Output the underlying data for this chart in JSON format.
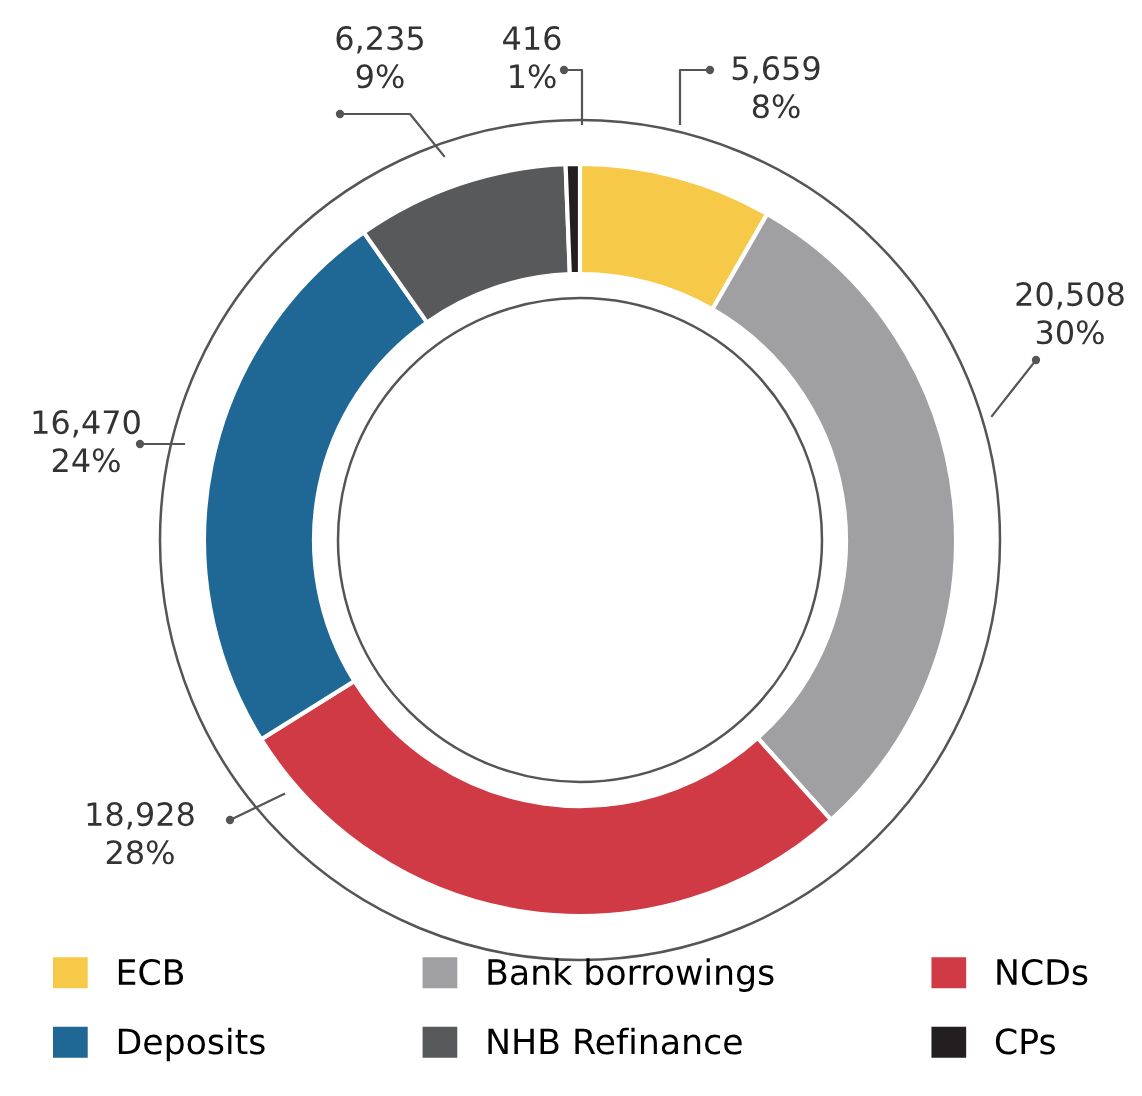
{
  "chart_data": {
    "type": "donut",
    "categories": [
      "ECB",
      "Bank borrowings",
      "NCDs",
      "Deposits",
      "NHB Refinance",
      "CPs"
    ],
    "values": [
      5659,
      20508,
      18928,
      16470,
      6235,
      416
    ],
    "colors": [
      "#f7c948",
      "#a0a0a2",
      "#cf3a45",
      "#1f6794",
      "#58595b",
      "#231f20"
    ],
    "value_labels": [
      "5,659\n8%",
      "20,508\n30%",
      "18,928\n28%",
      "16,470\n24%",
      "6,235\n9%",
      "416\n1%"
    ],
    "legend": "bottom"
  }
}
